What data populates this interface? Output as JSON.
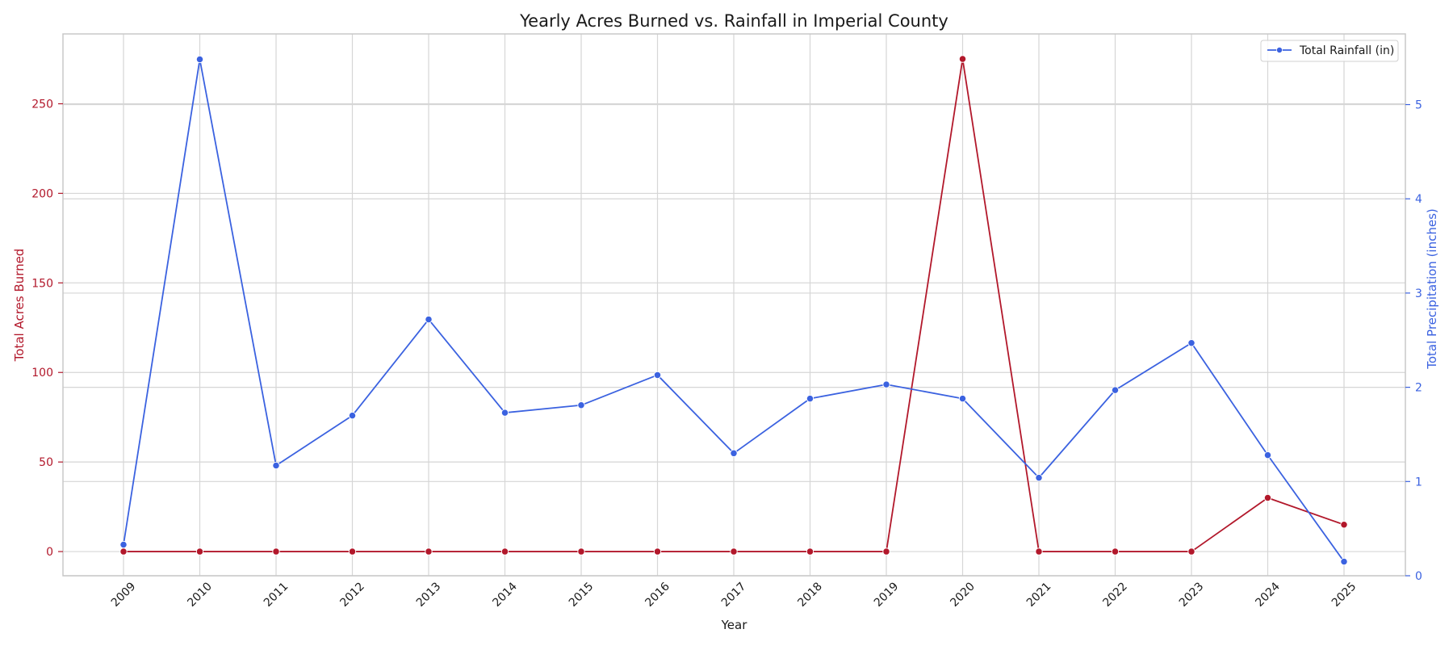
{
  "chart_data": {
    "type": "line",
    "title": "Yearly Acres Burned vs. Rainfall in Imperial County",
    "xlabel": "Year",
    "categories": [
      "2009",
      "2010",
      "2011",
      "2012",
      "2013",
      "2014",
      "2015",
      "2016",
      "2017",
      "2018",
      "2019",
      "2020",
      "2021",
      "2022",
      "2023",
      "2024",
      "2025"
    ],
    "grid": true,
    "legend_position": "top-right",
    "y_left": {
      "label": "Total Acres Burned",
      "ylim": [
        -13.5,
        289
      ],
      "ticks": [
        0,
        50,
        100,
        150,
        200,
        250
      ],
      "color": "#b2182b"
    },
    "y_right": {
      "label": "Total Precipitation (inches)",
      "ylim": [
        0,
        5.75
      ],
      "ticks": [
        0,
        1,
        2,
        3,
        4,
        5
      ],
      "color": "#3b62e0"
    },
    "series": [
      {
        "axis": "left",
        "color": "#b2182b",
        "values": [
          0,
          0,
          0,
          0,
          0,
          0,
          0,
          0,
          0,
          0,
          0,
          275,
          0,
          0,
          0,
          30,
          15
        ]
      },
      {
        "name": "Total Rainfall (in)",
        "axis": "right",
        "color": "#3b62e0",
        "values": [
          0.33,
          5.48,
          1.17,
          1.7,
          2.72,
          1.73,
          1.81,
          2.13,
          1.3,
          1.88,
          2.03,
          1.88,
          1.04,
          1.97,
          2.47,
          1.28,
          0.15
        ]
      }
    ]
  }
}
